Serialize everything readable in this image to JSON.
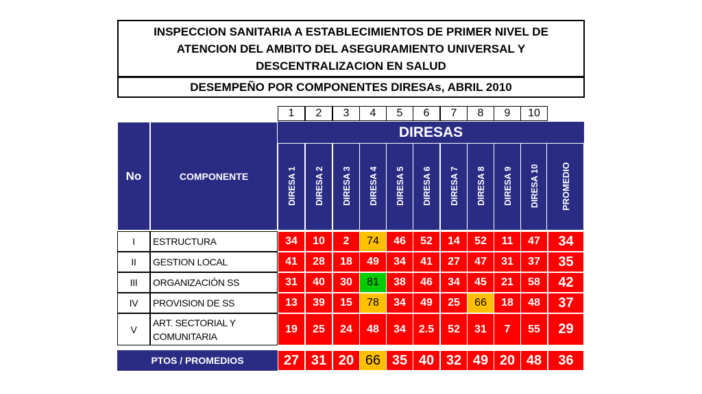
{
  "title": "INSPECCION SANITARIA A ESTABLECIMIENTOS DE PRIMER NIVEL DE ATENCION DEL AMBITO DEL ASEGURAMIENTO UNIVERSAL Y DESCENTRALIZACION EN SALUD",
  "subtitle": "DESEMPEÑO POR COMPONENTES DIRESAs, ABRIL 2010",
  "column_numbers": [
    "1",
    "2",
    "3",
    "4",
    "5",
    "6",
    "7",
    "8",
    "9",
    "10"
  ],
  "header": {
    "no": "No",
    "componente": "COMPONENTE",
    "diresas": "DIRESAS",
    "diresa_columns": [
      "DIRESA 1",
      "DIRESA 2",
      "DIRESA 3",
      "DIRESA 4",
      "DIRESA 5",
      "DIRESA 6",
      "DIRESA 7",
      "DIRESA 8",
      "DIRESA 9",
      "DIRESA 10"
    ],
    "promedio": "PROMEDIO"
  },
  "rows": [
    {
      "no": "I",
      "componente": "ESTRUCTURA",
      "values": [
        "34",
        "10",
        "2",
        "74",
        "46",
        "52",
        "14",
        "52",
        "11",
        "47"
      ],
      "promedio": "34"
    },
    {
      "no": "II",
      "componente": "GESTION LOCAL",
      "values": [
        "41",
        "28",
        "18",
        "49",
        "34",
        "41",
        "27",
        "47",
        "31",
        "37"
      ],
      "promedio": "35"
    },
    {
      "no": "III",
      "componente": "ORGANIZACIÓN SS",
      "values": [
        "31",
        "40",
        "30",
        "81",
        "38",
        "46",
        "34",
        "45",
        "21",
        "58"
      ],
      "promedio": "42"
    },
    {
      "no": "IV",
      "componente": "PROVISION DE SS",
      "values": [
        "13",
        "39",
        "15",
        "78",
        "34",
        "49",
        "25",
        "66",
        "18",
        "48"
      ],
      "promedio": "37"
    },
    {
      "no": "V",
      "componente": "ART. SECTORIAL Y COMUNITARIA",
      "values": [
        "19",
        "25",
        "24",
        "48",
        "34",
        "2.5",
        "52",
        "31",
        "7",
        "55"
      ],
      "promedio": "29"
    }
  ],
  "totals": {
    "label": "PTOS / PROMEDIOS",
    "values": [
      "27",
      "31",
      "20",
      "66",
      "35",
      "40",
      "32",
      "49",
      "20",
      "48"
    ],
    "promedio": "36"
  },
  "colors": {
    "navy": "#2a2c84",
    "red": "#ff0000",
    "yellow": "#ffc000",
    "green": "#00cc00"
  },
  "cell_highlights": {
    "rows": [
      {
        "3": "yellow"
      },
      {},
      {
        "3": "green"
      },
      {
        "3": "yellow",
        "7": "yellow"
      },
      {}
    ],
    "totals": {
      "3": "yellow"
    }
  }
}
